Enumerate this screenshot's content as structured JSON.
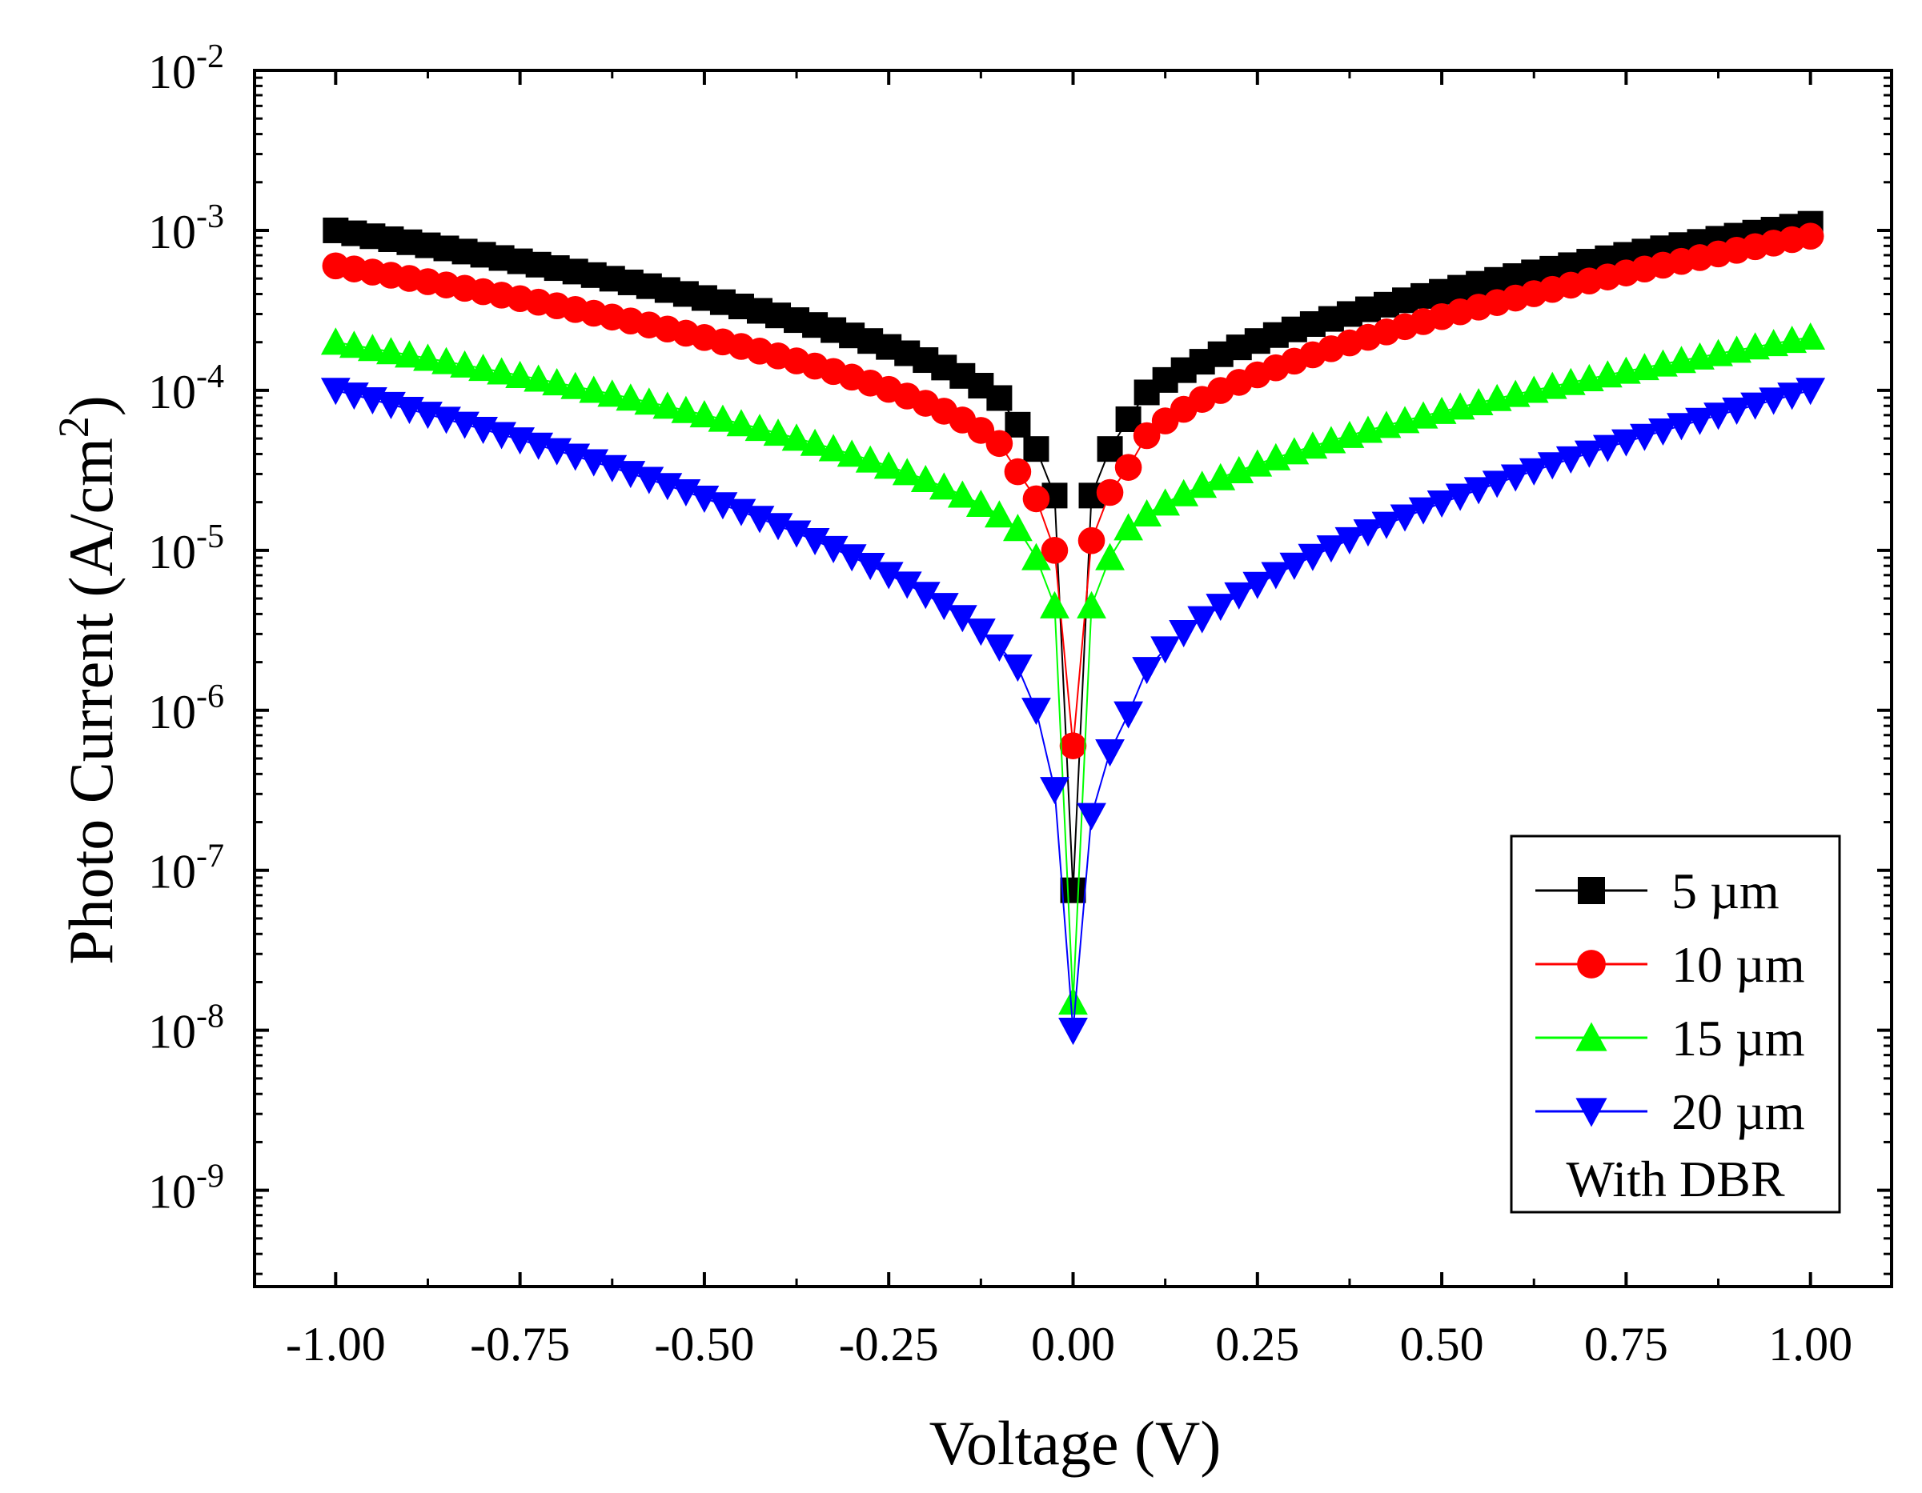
{
  "chart_data": {
    "type": "scatter",
    "title": "",
    "xlabel": "Voltage (V)",
    "ylabel": {
      "base": "Photo Current (A/cm",
      "sup": "2",
      "end": ")"
    },
    "yscale": "log",
    "xlim": [
      -1.11,
      1.11
    ],
    "ylim": [
      2.5e-10,
      0.01
    ],
    "xticks": [
      {
        "value": -1.0,
        "label": "-1.00"
      },
      {
        "value": -0.75,
        "label": "-0.75"
      },
      {
        "value": -0.5,
        "label": "-0.50"
      },
      {
        "value": -0.25,
        "label": "-0.25"
      },
      {
        "value": 0.0,
        "label": "0.00"
      },
      {
        "value": 0.25,
        "label": "0.25"
      },
      {
        "value": 0.5,
        "label": "0.50"
      },
      {
        "value": 0.75,
        "label": "0.75"
      },
      {
        "value": 1.0,
        "label": "1.00"
      }
    ],
    "yticks": [
      {
        "value": 0.01,
        "base": "10",
        "exp": "-2"
      },
      {
        "value": 0.001,
        "base": "10",
        "exp": "-3"
      },
      {
        "value": 0.0001,
        "base": "10",
        "exp": "-4"
      },
      {
        "value": 1e-05,
        "base": "10",
        "exp": "-5"
      },
      {
        "value": 1e-06,
        "base": "10",
        "exp": "-6"
      },
      {
        "value": 1e-07,
        "base": "10",
        "exp": "-7"
      },
      {
        "value": 1e-08,
        "base": "10",
        "exp": "-8"
      },
      {
        "value": 1e-09,
        "base": "10",
        "exp": "-9"
      }
    ],
    "x_step": 0.025,
    "legend_position": "bottom-right",
    "legend_note": "With DBR",
    "series": [
      {
        "name": "5 µm",
        "color": "#000000",
        "marker": "square",
        "left_edge": 0.001,
        "right_edge": 0.0011,
        "near_zero": [
          [
            0.0,
            7.5e-08
          ],
          [
            0.025,
            2.2e-05
          ],
          [
            0.05,
            4.3e-05
          ],
          [
            0.075,
            6.6e-05
          ],
          [
            -0.025,
            2.2e-05
          ],
          [
            -0.05,
            4.3e-05
          ],
          [
            -0.075,
            6.1e-05
          ]
        ]
      },
      {
        "name": "10 µm",
        "color": "#ff0000",
        "marker": "circle",
        "left_edge": 0.0006,
        "right_edge": 0.00092,
        "near_zero": [
          [
            0.0,
            6e-07
          ],
          [
            0.025,
            1.15e-05
          ],
          [
            0.05,
            2.3e-05
          ],
          [
            0.075,
            3.3e-05
          ],
          [
            -0.025,
            1e-05
          ],
          [
            -0.05,
            2.1e-05
          ],
          [
            -0.075,
            3.1e-05
          ]
        ]
      },
      {
        "name": "15 µm",
        "color": "#00ff00",
        "marker": "triangle-up",
        "left_edge": 0.0002,
        "right_edge": 0.000215,
        "near_zero": [
          [
            0.0,
            1.5e-08
          ],
          [
            0.025,
            4.5e-06
          ],
          [
            0.05,
            9e-06
          ],
          [
            -0.025,
            4.5e-06
          ],
          [
            -0.05,
            9e-06
          ]
        ]
      },
      {
        "name": "20 µm",
        "color": "#0000ff",
        "marker": "triangle-down",
        "left_edge": 0.0001,
        "right_edge": 0.0001,
        "near_zero": [
          [
            0.0,
            1e-08
          ],
          [
            0.025,
            2.2e-07
          ],
          [
            0.05,
            5.5e-07
          ],
          [
            0.075,
            9.5e-07
          ],
          [
            -0.025,
            3.2e-07
          ],
          [
            -0.05,
            1e-06
          ]
        ]
      }
    ]
  }
}
